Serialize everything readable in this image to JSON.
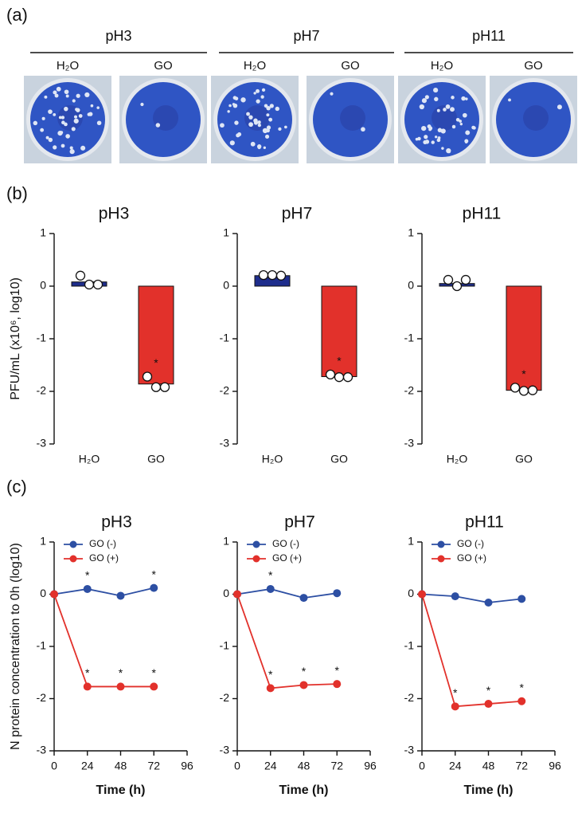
{
  "panel_labels": [
    "(a)",
    "(b)",
    "(c)"
  ],
  "photos": {
    "groups": [
      {
        "title": "pH3",
        "wells": [
          "H₂O",
          "GO"
        ]
      },
      {
        "title": "pH7",
        "wells": [
          "H₂O",
          "GO"
        ]
      },
      {
        "title": "pH11",
        "wells": [
          "H₂O",
          "GO"
        ]
      }
    ]
  },
  "chart_data": [
    {
      "type": "bar",
      "title": "pH3",
      "ylabel": "PFU/mL (x10⁶, log10)",
      "categories": [
        "H₂O",
        "GO"
      ],
      "values": [
        0.08,
        -1.86
      ],
      "colors": [
        "#1e2d8c",
        "#e2312b"
      ],
      "points": [
        [
          0.2,
          0.03,
          0.03
        ],
        [
          -1.72,
          -1.92,
          -1.92
        ]
      ],
      "stars": [
        null,
        "*"
      ],
      "ylim": [
        -3,
        1
      ],
      "yticks": [
        -3,
        -2,
        -1,
        0,
        1
      ]
    },
    {
      "type": "bar",
      "title": "pH7",
      "categories": [
        "H₂O",
        "GO"
      ],
      "values": [
        0.2,
        -1.72
      ],
      "colors": [
        "#1e2d8c",
        "#e2312b"
      ],
      "points": [
        [
          0.21,
          0.21,
          0.2
        ],
        [
          -1.68,
          -1.73,
          -1.73
        ]
      ],
      "stars": [
        null,
        "*"
      ],
      "ylim": [
        -3,
        1
      ],
      "yticks": [
        -3,
        -2,
        -1,
        0,
        1
      ]
    },
    {
      "type": "bar",
      "title": "pH11",
      "categories": [
        "H₂O",
        "GO"
      ],
      "values": [
        0.05,
        -1.98
      ],
      "colors": [
        "#1e2d8c",
        "#e2312b"
      ],
      "points": [
        [
          0.12,
          0.0,
          0.12
        ],
        [
          -1.93,
          -1.99,
          -1.98
        ]
      ],
      "stars": [
        null,
        "*"
      ],
      "ylim": [
        -3,
        1
      ],
      "yticks": [
        -3,
        -2,
        -1,
        0,
        1
      ]
    },
    {
      "type": "line",
      "title": "pH3",
      "ylabel": "N protein concentration to 0h (log10)",
      "xlabel": "Time (h)",
      "x": [
        0,
        24,
        48,
        72
      ],
      "series": [
        {
          "name": "GO (-)",
          "color": "#2d4fa3",
          "values": [
            0,
            0.1,
            -0.03,
            0.12
          ],
          "stars": [
            null,
            "*",
            null,
            "*"
          ]
        },
        {
          "name": "GO (+)",
          "color": "#e2312b",
          "values": [
            0,
            -1.77,
            -1.77,
            -1.77
          ],
          "stars": [
            null,
            "*",
            "*",
            "*"
          ]
        }
      ],
      "xlim": [
        0,
        96
      ],
      "xticks": [
        0,
        24,
        48,
        72,
        96
      ],
      "ylim": [
        -3,
        1
      ],
      "yticks": [
        -3,
        -2,
        -1,
        0,
        1
      ],
      "legend": "upper-left"
    },
    {
      "type": "line",
      "title": "pH7",
      "xlabel": "Time (h)",
      "x": [
        0,
        24,
        48,
        72
      ],
      "series": [
        {
          "name": "GO (-)",
          "color": "#2d4fa3",
          "values": [
            0,
            0.1,
            -0.07,
            0.02
          ],
          "stars": [
            null,
            "*",
            null,
            null
          ]
        },
        {
          "name": "GO (+)",
          "color": "#e2312b",
          "values": [
            0,
            -1.8,
            -1.74,
            -1.72
          ],
          "stars": [
            null,
            "*",
            "*",
            "*"
          ]
        }
      ],
      "xlim": [
        0,
        96
      ],
      "xticks": [
        0,
        24,
        48,
        72,
        96
      ],
      "ylim": [
        -3,
        1
      ],
      "yticks": [
        -3,
        -2,
        -1,
        0,
        1
      ],
      "legend": "upper-left"
    },
    {
      "type": "line",
      "title": "pH11",
      "xlabel": "Time (h)",
      "x": [
        0,
        24,
        48,
        72
      ],
      "series": [
        {
          "name": "GO (-)",
          "color": "#2d4fa3",
          "values": [
            0,
            -0.04,
            -0.16,
            -0.09
          ],
          "stars": [
            null,
            null,
            null,
            null
          ]
        },
        {
          "name": "GO (+)",
          "color": "#e2312b",
          "values": [
            0,
            -2.15,
            -2.1,
            -2.05
          ],
          "stars": [
            null,
            "*",
            "*",
            "*"
          ]
        }
      ],
      "xlim": [
        0,
        96
      ],
      "xticks": [
        0,
        24,
        48,
        72,
        96
      ],
      "ylim": [
        -3,
        1
      ],
      "yticks": [
        -3,
        -2,
        -1,
        0,
        1
      ],
      "legend": "upper-left"
    }
  ]
}
